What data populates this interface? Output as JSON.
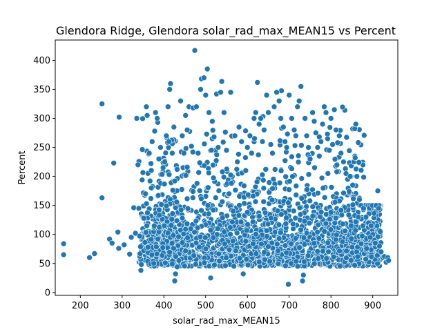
{
  "chart_data": {
    "type": "scatter",
    "title": "Glendora Ridge, Glendora solar_rad_max_MEAN15 vs Percent",
    "xlabel": "solar_rad_max_MEAN15",
    "ylabel": "Percent",
    "xlim": [
      140,
      960
    ],
    "ylim": [
      -5,
      435
    ],
    "xticks": [
      200,
      300,
      400,
      500,
      600,
      700,
      800,
      900
    ],
    "yticks": [
      0,
      50,
      100,
      150,
      200,
      250,
      300,
      350,
      400
    ],
    "grid": false,
    "legend": "none",
    "marker_color": "#1f77b4",
    "marker_edge_color": "#ffffff",
    "series": [
      {
        "points": [
          [
            160,
            84
          ],
          [
            160,
            65
          ],
          [
            222,
            60
          ],
          [
            234,
            67
          ],
          [
            252,
            325
          ],
          [
            252,
            163
          ],
          [
            270,
            92
          ],
          [
            276,
            85
          ],
          [
            280,
            223
          ],
          [
            290,
            104
          ],
          [
            293,
            302
          ],
          [
            292,
            76
          ],
          [
            305,
            82
          ],
          [
            318,
            66
          ],
          [
            322,
            95
          ],
          [
            328,
            146
          ],
          [
            332,
            102
          ],
          [
            335,
            300
          ],
          [
            338,
            220
          ],
          [
            340,
            145
          ],
          [
            345,
            38
          ],
          [
            348,
            194
          ],
          [
            352,
            128
          ],
          [
            356,
            170
          ],
          [
            358,
            320
          ],
          [
            360,
            305
          ],
          [
            362,
            78
          ],
          [
            365,
            240
          ],
          [
            370,
            180
          ],
          [
            372,
            260
          ],
          [
            378,
            278
          ],
          [
            380,
            310
          ],
          [
            384,
            300
          ],
          [
            388,
            230
          ],
          [
            392,
            250
          ],
          [
            398,
            215
          ],
          [
            402,
            225
          ],
          [
            406,
            270
          ],
          [
            410,
            320
          ],
          [
            412,
            260
          ],
          [
            414,
            350
          ],
          [
            416,
            360
          ],
          [
            420,
            240
          ],
          [
            424,
            285
          ],
          [
            426,
            20
          ],
          [
            428,
            32
          ],
          [
            432,
            44
          ],
          [
            436,
            55
          ],
          [
            440,
            330
          ],
          [
            444,
            270
          ],
          [
            448,
            240
          ],
          [
            452,
            305
          ],
          [
            456,
            280
          ],
          [
            460,
            320
          ],
          [
            466,
            252
          ],
          [
            470,
            318
          ],
          [
            474,
            417
          ],
          [
            478,
            320
          ],
          [
            482,
            240
          ],
          [
            488,
            350
          ],
          [
            490,
            368
          ],
          [
            496,
            370
          ],
          [
            500,
            340
          ],
          [
            504,
            385
          ],
          [
            508,
            310
          ],
          [
            512,
            25
          ],
          [
            516,
            295
          ],
          [
            520,
            268
          ],
          [
            526,
            342
          ],
          [
            530,
            250
          ],
          [
            536,
            345
          ],
          [
            540,
            208
          ],
          [
            544,
            310
          ],
          [
            550,
            245
          ],
          [
            556,
            170
          ],
          [
            560,
            345
          ],
          [
            566,
            140
          ],
          [
            570,
            270
          ],
          [
            576,
            225
          ],
          [
            580,
            285
          ],
          [
            586,
            260
          ],
          [
            590,
            32
          ],
          [
            596,
            210
          ],
          [
            600,
            250
          ],
          [
            606,
            270
          ],
          [
            610,
            240
          ],
          [
            616,
            300
          ],
          [
            620,
            310
          ],
          [
            624,
            362
          ],
          [
            628,
            290
          ],
          [
            632,
            300
          ],
          [
            636,
            260
          ],
          [
            640,
            280
          ],
          [
            646,
            340
          ],
          [
            650,
            310
          ],
          [
            656,
            255
          ],
          [
            660,
            240
          ],
          [
            664,
            320
          ],
          [
            670,
            345
          ],
          [
            676,
            330
          ],
          [
            680,
            300
          ],
          [
            686,
            285
          ],
          [
            690,
            260
          ],
          [
            694,
            250
          ],
          [
            698,
            14
          ],
          [
            700,
            340
          ],
          [
            706,
            300
          ],
          [
            712,
            280
          ],
          [
            716,
            270
          ],
          [
            720,
            320
          ],
          [
            724,
            330
          ],
          [
            728,
            355
          ],
          [
            732,
            20
          ],
          [
            734,
            30
          ],
          [
            738,
            300
          ],
          [
            742,
            270
          ],
          [
            746,
            250
          ],
          [
            750,
            230
          ],
          [
            756,
            310
          ],
          [
            760,
            295
          ],
          [
            764,
            275
          ],
          [
            768,
            250
          ],
          [
            772,
            235
          ],
          [
            776,
            260
          ],
          [
            780,
            290
          ],
          [
            784,
            320
          ],
          [
            788,
            310
          ],
          [
            792,
            265
          ],
          [
            796,
            245
          ],
          [
            800,
            300
          ],
          [
            804,
            255
          ],
          [
            808,
            315
          ],
          [
            812,
            280
          ],
          [
            816,
            258
          ],
          [
            820,
            270
          ],
          [
            824,
            240
          ],
          [
            830,
            225
          ],
          [
            836,
            205
          ],
          [
            840,
            195
          ],
          [
            846,
            200
          ],
          [
            852,
            185
          ],
          [
            858,
            232
          ],
          [
            862,
            200
          ],
          [
            868,
            160
          ],
          [
            872,
            150
          ],
          [
            878,
            145
          ],
          [
            884,
            130
          ],
          [
            890,
            120
          ],
          [
            896,
            115
          ],
          [
            900,
            100
          ],
          [
            904,
            90
          ],
          [
            908,
            150
          ],
          [
            912,
            175
          ],
          [
            916,
            80
          ],
          [
            920,
            70
          ],
          [
            924,
            60
          ],
          [
            928,
            62
          ],
          [
            932,
            52
          ],
          [
            936,
            60
          ],
          [
            938,
            55
          ],
          [
            918,
            105
          ],
          [
            914,
            145
          ],
          [
            906,
            85
          ],
          [
            894,
            95
          ]
        ]
      }
    ],
    "density_note": "Dense cloud of several thousand points, concentrated between x 350-900 and y 40-200, thinning above 250."
  }
}
